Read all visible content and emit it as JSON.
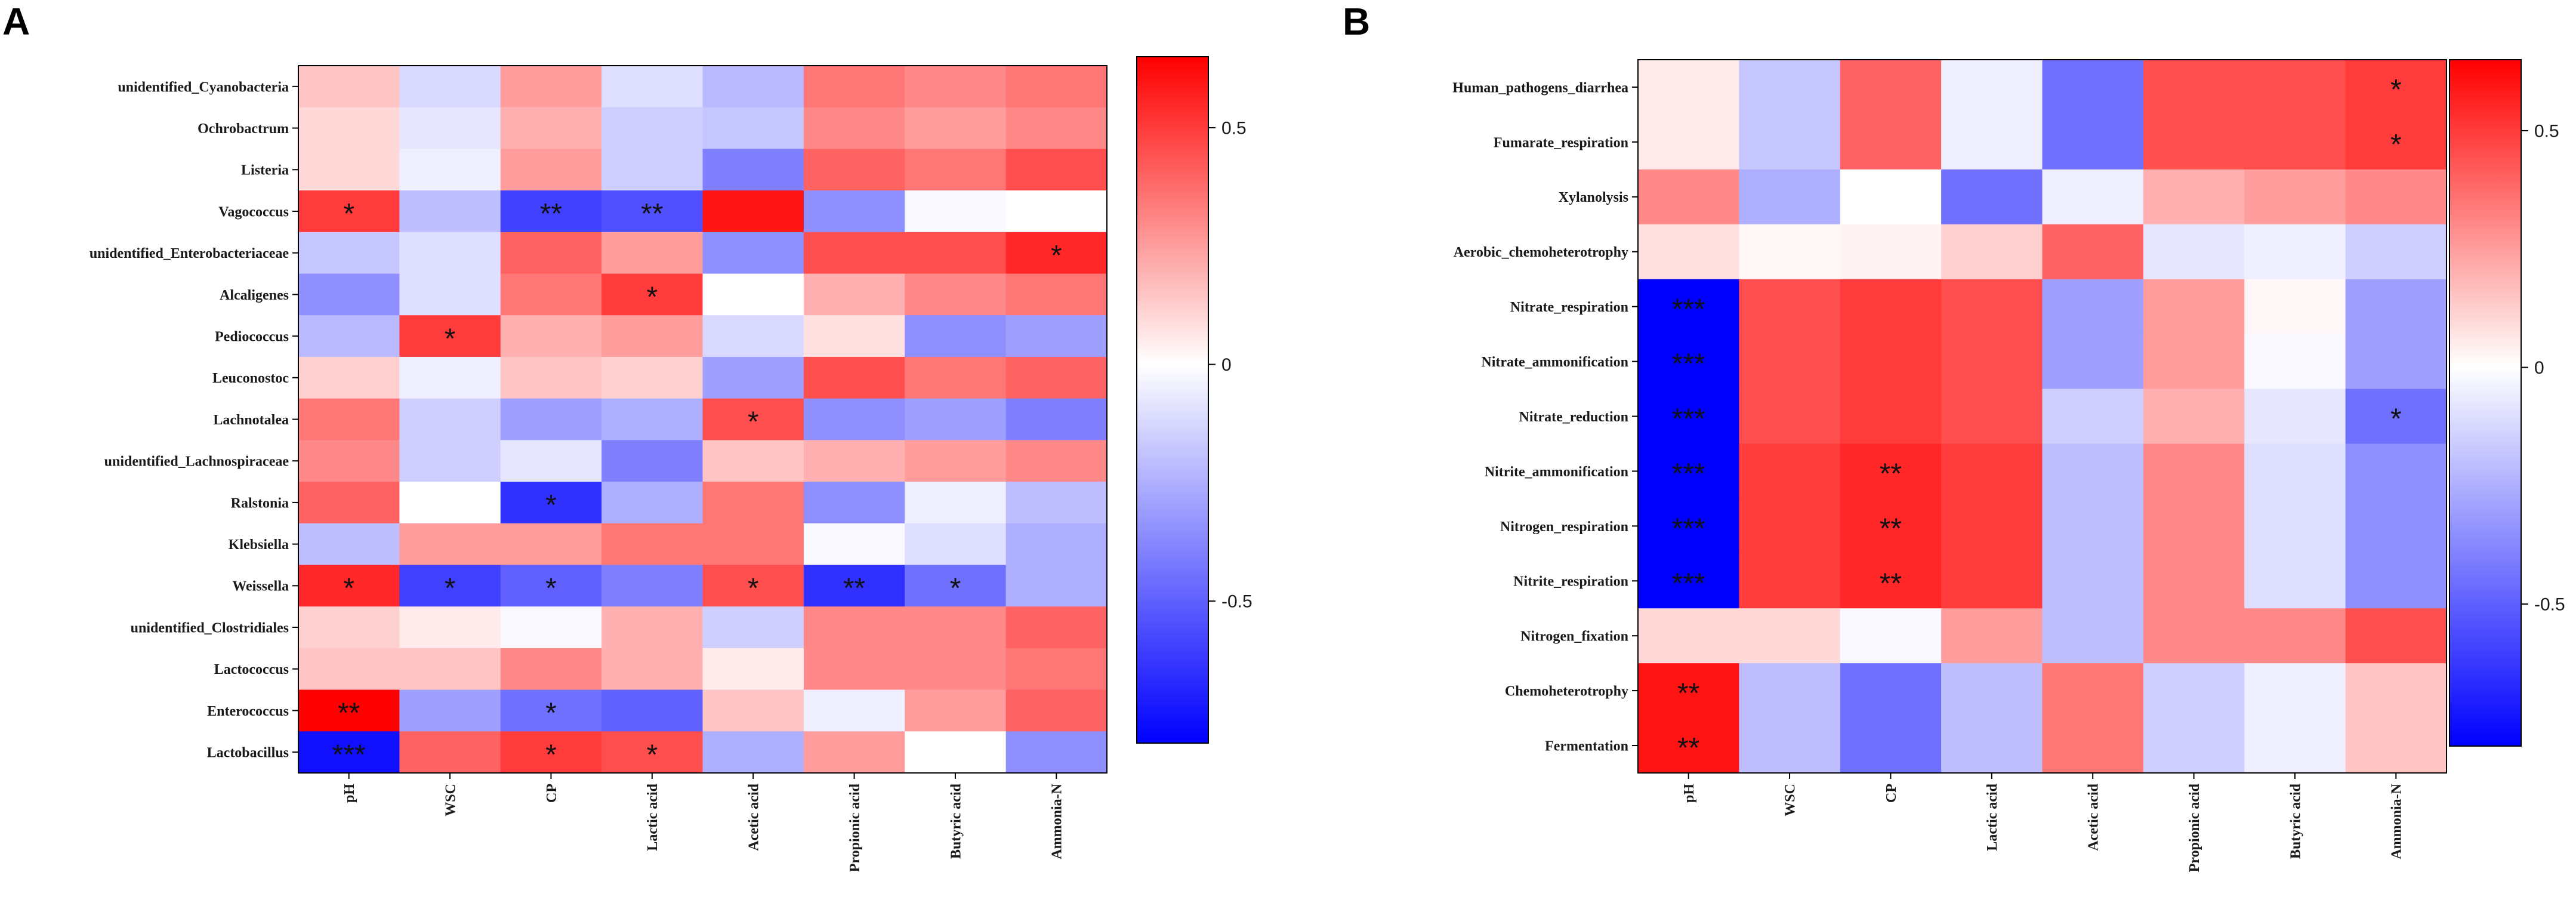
{
  "panels": [
    {
      "panel_label": "A",
      "chart_data": {
        "type": "heatmap",
        "title": "",
        "x_labels": [
          "pH",
          "WSC",
          "CP",
          "Lactic acid",
          "Acetic acid",
          "Propionic acid",
          "Butyric acid",
          "Ammonia-N"
        ],
        "y_labels": [
          "unidentified_Cyanobacteria",
          "Ochrobactrum",
          "Listeria",
          "Vagococcus",
          "unidentified_Enterobacteriaceae",
          "Alcaligenes",
          "Pediococcus",
          "Leuconostoc",
          "Lachnotalea",
          "unidentified_Lachnospiraceae",
          "Ralstonia",
          "Klebsiella",
          "Weissella",
          "unidentified_Clostridiales",
          "Lactococcus",
          "Enterococcus",
          "Lactobacillus"
        ],
        "values": [
          [
            0.15,
            -0.12,
            0.25,
            -0.1,
            -0.22,
            0.35,
            0.3,
            0.35
          ],
          [
            0.1,
            -0.08,
            0.2,
            -0.15,
            -0.18,
            0.3,
            0.25,
            0.3
          ],
          [
            0.1,
            -0.05,
            0.25,
            -0.15,
            -0.4,
            0.4,
            0.35,
            0.45
          ],
          [
            0.5,
            -0.2,
            -0.6,
            -0.55,
            0.6,
            -0.35,
            -0.02,
            0.0
          ],
          [
            -0.18,
            -0.1,
            0.4,
            0.25,
            -0.35,
            0.45,
            0.45,
            0.55
          ],
          [
            -0.35,
            -0.1,
            0.35,
            0.5,
            0.0,
            0.2,
            0.3,
            0.35
          ],
          [
            -0.22,
            0.5,
            0.2,
            0.25,
            -0.12,
            0.08,
            -0.35,
            -0.3
          ],
          [
            0.12,
            -0.05,
            0.15,
            0.12,
            -0.3,
            0.45,
            0.35,
            0.4
          ],
          [
            0.35,
            -0.15,
            -0.3,
            -0.25,
            0.45,
            -0.35,
            -0.3,
            -0.4
          ],
          [
            0.3,
            -0.15,
            -0.08,
            -0.4,
            0.15,
            0.2,
            0.25,
            0.3
          ],
          [
            0.4,
            0.0,
            -0.65,
            -0.25,
            0.35,
            -0.35,
            -0.05,
            -0.2
          ],
          [
            -0.2,
            0.25,
            0.25,
            0.35,
            0.35,
            -0.02,
            -0.1,
            -0.25
          ],
          [
            0.55,
            -0.6,
            -0.5,
            -0.4,
            0.45,
            -0.65,
            -0.45,
            -0.25
          ],
          [
            0.12,
            0.05,
            -0.02,
            0.2,
            -0.15,
            0.3,
            0.3,
            0.4
          ],
          [
            0.15,
            0.15,
            0.3,
            0.2,
            0.05,
            0.3,
            0.3,
            0.35
          ],
          [
            0.65,
            -0.3,
            -0.45,
            -0.5,
            0.15,
            -0.05,
            0.25,
            0.4
          ],
          [
            -0.75,
            0.4,
            0.5,
            0.45,
            -0.25,
            0.25,
            0.0,
            -0.35
          ]
        ],
        "significance": [
          [
            "",
            "",
            "",
            "",
            "",
            "",
            "",
            ""
          ],
          [
            "",
            "",
            "",
            "",
            "",
            "",
            "",
            ""
          ],
          [
            "",
            "",
            "",
            "",
            "",
            "",
            "",
            ""
          ],
          [
            "*",
            "",
            "**",
            "**",
            "",
            "",
            "",
            ""
          ],
          [
            "",
            "",
            "",
            "",
            "",
            "",
            "",
            "*"
          ],
          [
            "",
            "",
            "",
            "*",
            "",
            "",
            "",
            ""
          ],
          [
            "",
            "*",
            "",
            "",
            "",
            "",
            "",
            ""
          ],
          [
            "",
            "",
            "",
            "",
            "",
            "",
            "",
            ""
          ],
          [
            "",
            "",
            "",
            "",
            "*",
            "",
            "",
            ""
          ],
          [
            "",
            "",
            "",
            "",
            "",
            "",
            "",
            ""
          ],
          [
            "",
            "",
            "*",
            "",
            "",
            "",
            "",
            ""
          ],
          [
            "",
            "",
            "",
            "",
            "",
            "",
            "",
            ""
          ],
          [
            "*",
            "*",
            "*",
            "",
            "*",
            "**",
            "*",
            ""
          ],
          [
            "",
            "",
            "",
            "",
            "",
            "",
            "",
            ""
          ],
          [
            "",
            "",
            "",
            "",
            "",
            "",
            "",
            ""
          ],
          [
            "**",
            "",
            "*",
            "",
            "",
            "",
            "",
            ""
          ],
          [
            "***",
            "",
            "*",
            "*",
            "",
            "",
            "",
            ""
          ]
        ],
        "colorbar": {
          "min": -0.8,
          "max": 0.65,
          "ticks": [
            0.5,
            0,
            -0.5
          ],
          "tick_labels": [
            "0.5",
            "0",
            "-0.5"
          ],
          "colors": [
            "#0000ff",
            "#ffffff",
            "#ff0000"
          ]
        }
      }
    },
    {
      "panel_label": "B",
      "chart_data": {
        "type": "heatmap",
        "title": "",
        "x_labels": [
          "pH",
          "WSC",
          "CP",
          "Lactic acid",
          "Acetic acid",
          "Propionic acid",
          "Butyric acid",
          "Ammonia-N"
        ],
        "y_labels": [
          "Human_pathogens_diarrhea",
          "Fumarate_respiration",
          "Xylanolysis",
          "Aerobic_chemoheterotrophy",
          "Nitrate_respiration",
          "Nitrate_ammonification",
          "Nitrate_reduction",
          "Nitrite_ammonification",
          "Nitrogen_respiration",
          "Nitrite_respiration",
          "Nitrogen_fixation",
          "Chemoheterotrophy",
          "Fermentation"
        ],
        "values": [
          [
            0.05,
            -0.18,
            0.4,
            -0.05,
            -0.45,
            0.45,
            0.45,
            0.5
          ],
          [
            0.05,
            -0.18,
            0.4,
            -0.05,
            -0.45,
            0.45,
            0.45,
            0.5
          ],
          [
            0.3,
            -0.25,
            0.0,
            -0.45,
            -0.05,
            0.2,
            0.25,
            0.3
          ],
          [
            0.08,
            0.02,
            0.03,
            0.12,
            0.4,
            -0.08,
            -0.05,
            -0.15
          ],
          [
            -0.85,
            0.45,
            0.5,
            0.45,
            -0.3,
            0.25,
            0.02,
            -0.3
          ],
          [
            -0.85,
            0.45,
            0.5,
            0.45,
            -0.3,
            0.25,
            -0.02,
            -0.3
          ],
          [
            -0.85,
            0.45,
            0.5,
            0.45,
            -0.15,
            0.2,
            -0.08,
            -0.45
          ],
          [
            -0.85,
            0.5,
            0.55,
            0.5,
            -0.2,
            0.3,
            -0.1,
            -0.35
          ],
          [
            -0.85,
            0.5,
            0.55,
            0.5,
            -0.2,
            0.3,
            -0.1,
            -0.35
          ],
          [
            -0.85,
            0.5,
            0.55,
            0.5,
            -0.2,
            0.3,
            -0.1,
            -0.35
          ],
          [
            0.1,
            0.1,
            -0.02,
            0.25,
            -0.2,
            0.3,
            0.3,
            0.45
          ],
          [
            0.6,
            -0.2,
            -0.45,
            -0.2,
            0.35,
            -0.15,
            -0.05,
            0.15
          ],
          [
            0.6,
            -0.2,
            -0.45,
            -0.2,
            0.35,
            -0.15,
            -0.05,
            0.15
          ]
        ],
        "significance": [
          [
            "",
            "",
            "",
            "",
            "",
            "",
            "",
            "*"
          ],
          [
            "",
            "",
            "",
            "",
            "",
            "",
            "",
            "*"
          ],
          [
            "",
            "",
            "",
            "",
            "",
            "",
            "",
            ""
          ],
          [
            "",
            "",
            "",
            "",
            "",
            "",
            "",
            ""
          ],
          [
            "***",
            "",
            "",
            "",
            "",
            "",
            "",
            ""
          ],
          [
            "***",
            "",
            "",
            "",
            "",
            "",
            "",
            ""
          ],
          [
            "***",
            "",
            "",
            "",
            "",
            "",
            "",
            "*"
          ],
          [
            "***",
            "",
            "**",
            "",
            "",
            "",
            "",
            ""
          ],
          [
            "***",
            "",
            "**",
            "",
            "",
            "",
            "",
            ""
          ],
          [
            "***",
            "",
            "**",
            "",
            "",
            "",
            "",
            ""
          ],
          [
            "",
            "",
            "",
            "",
            "",
            "",
            "",
            ""
          ],
          [
            "**",
            "",
            "",
            "",
            "",
            "",
            "",
            ""
          ],
          [
            "**",
            "",
            "",
            "",
            "",
            "",
            "",
            ""
          ]
        ],
        "colorbar": {
          "min": -0.8,
          "max": 0.65,
          "ticks": [
            0.5,
            0,
            -0.5
          ],
          "tick_labels": [
            "0.5",
            "0",
            "-0.5"
          ],
          "colors": [
            "#0000ff",
            "#ffffff",
            "#ff0000"
          ]
        }
      }
    }
  ]
}
